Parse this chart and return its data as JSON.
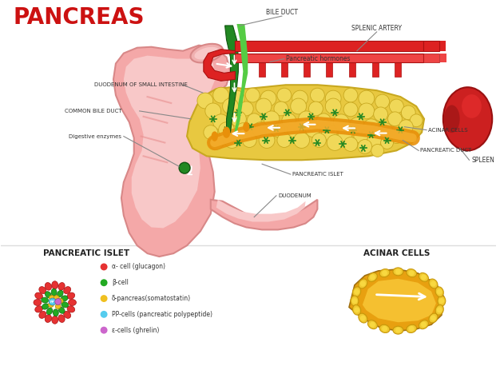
{
  "title": "PANCREAS",
  "title_color": "#cc1111",
  "title_fontsize": 20,
  "title_fontweight": "bold",
  "bg_color": "#ffffff",
  "labels": {
    "bile_duct": "BILE DUCT",
    "splenic_artery": "SPLENIC ARTERY",
    "pancreatic_hormones": "Pancreatic hormones",
    "spleen": "SPLEEN",
    "duodenum_small": "DUODENUM OF SMALL INTESTINE",
    "common_bile": "COMMON BILE DUCT",
    "digestive_enzymes": "Digestive enzymes",
    "acinar_cells": "ACINAR CELLS",
    "pancreatic_duct": "PANCREATIC DUCT",
    "pancreatic_islet": "PANCREATIC ISLET",
    "duodenum": "DUODENUM"
  },
  "section_islet": "PANCREATIC ISLET",
  "section_acinar": "ACINAR CELLS",
  "legend_items": [
    {
      "color": "#e63232",
      "text": "α- cell (glucagon)"
    },
    {
      "color": "#22aa22",
      "text": "β-cell"
    },
    {
      "color": "#f0c020",
      "text": "δ-pancreas(somatostatin)"
    },
    {
      "color": "#55ccee",
      "text": "PP-cells (pancreatic polypeptide)"
    },
    {
      "color": "#cc66cc",
      "text": "ε-cells (ghrelin)"
    }
  ],
  "stomach_outer": "#f4a8a8",
  "stomach_mid": "#f0b8b8",
  "stomach_inner": "#f8c8c8",
  "stomach_stripe": "#e89090",
  "pancreas_outer": "#e8c840",
  "pancreas_cell": "#f0d858",
  "pancreas_edge": "#c8a820",
  "green_dark": "#228822",
  "green_light": "#55cc44",
  "orange_duct": "#e8900a",
  "orange_light": "#f5b030",
  "blood_red": "#dd2222",
  "blood_dark": "#aa1111",
  "spleen_red": "#cc2020",
  "islet_star": "#228822",
  "acinar_outer_color": "#e8a010",
  "acinar_inner_color": "#f5c030",
  "acinar_cell_color": "#f0c830",
  "acinar_cell_edge": "#c8980a"
}
